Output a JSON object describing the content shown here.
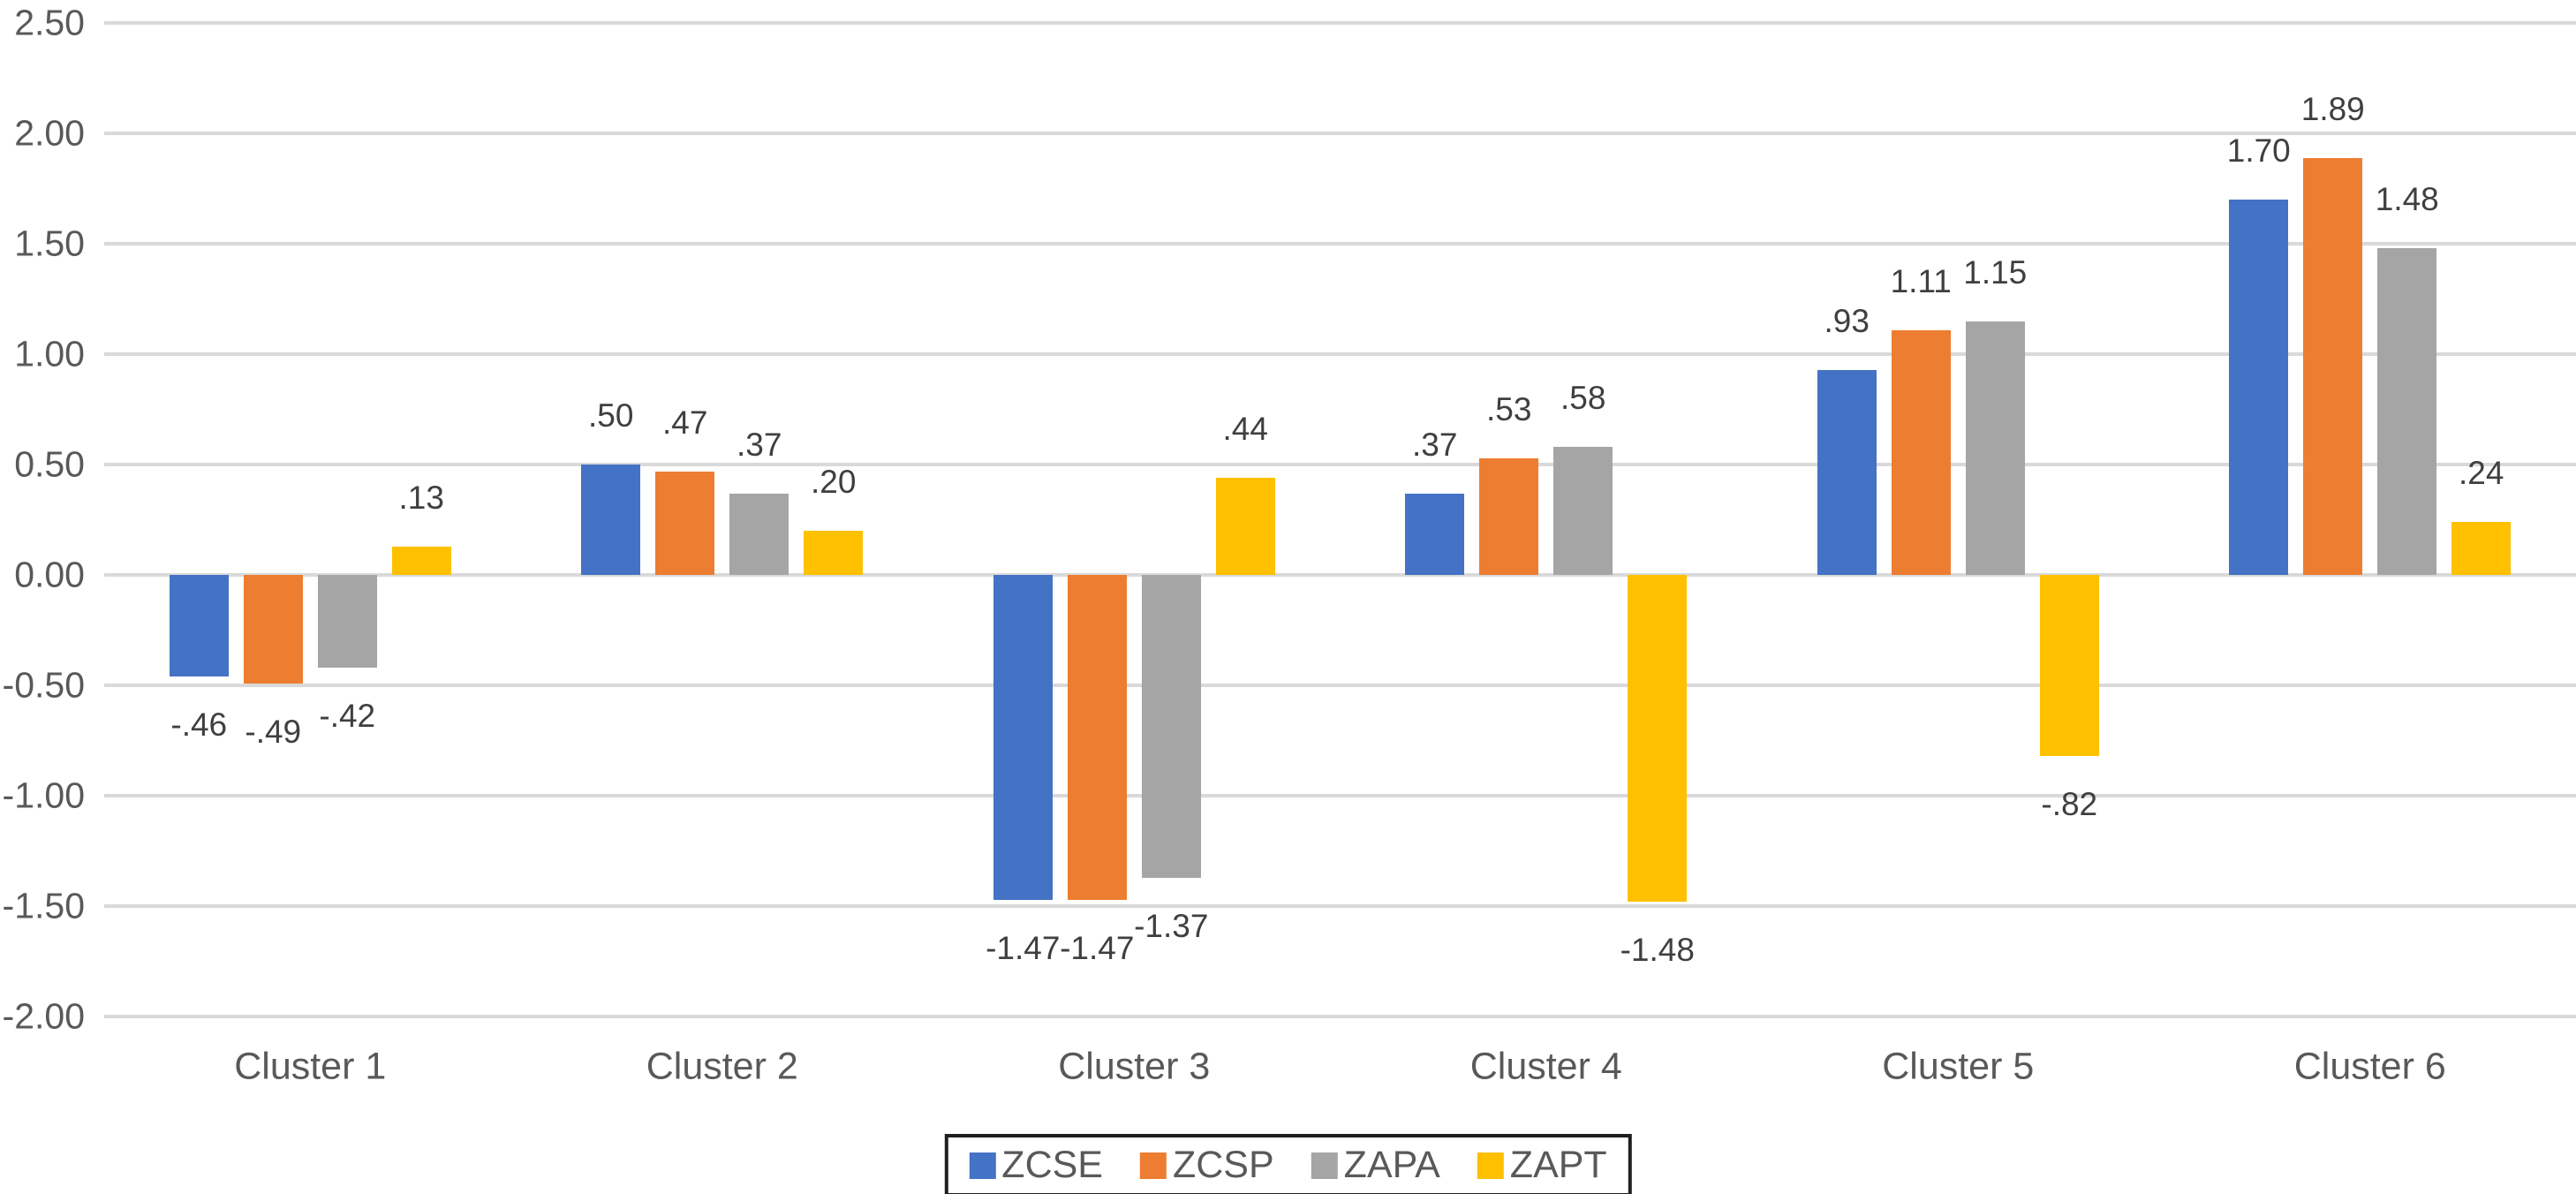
{
  "chart_data": {
    "type": "bar",
    "title": "",
    "categories": [
      "Cluster 1",
      "Cluster 2",
      "Cluster 3",
      "Cluster 4",
      "Cluster 5",
      "Cluster 6"
    ],
    "series": [
      {
        "name": "ZCSE",
        "color": "#4472C4",
        "values": [
          -0.46,
          0.5,
          -1.47,
          0.37,
          0.93,
          1.7
        ],
        "labels": [
          "-.46",
          ".50",
          "-1.47",
          ".37",
          ".93",
          "1.70"
        ]
      },
      {
        "name": "ZCSP",
        "color": "#ED7D31",
        "values": [
          -0.49,
          0.47,
          -1.47,
          0.53,
          1.11,
          1.89
        ],
        "labels": [
          "-.49",
          ".47",
          "-1.47",
          ".53",
          "1.11",
          "1.89"
        ]
      },
      {
        "name": "ZAPA",
        "color": "#A5A5A5",
        "values": [
          -0.42,
          0.37,
          -1.37,
          0.58,
          1.15,
          1.48
        ],
        "labels": [
          "-.42",
          ".37",
          "-1.37",
          ".58",
          "1.15",
          "1.48"
        ]
      },
      {
        "name": "ZAPT",
        "color": "#FFC000",
        "values": [
          0.13,
          0.2,
          0.44,
          -1.48,
          -0.82,
          0.24
        ],
        "labels": [
          ".13",
          ".20",
          ".44",
          "-1.48",
          "-.82",
          ".24"
        ]
      }
    ],
    "y_axis": {
      "min": -2.0,
      "max": 2.5,
      "step": 0.5,
      "tick_labels": [
        "2.50",
        "2.00",
        "1.50",
        "1.00",
        "0.50",
        "0.00",
        "-0.50",
        "-1.00",
        "-1.50",
        "-2.00"
      ]
    },
    "grid": true,
    "gridline_color": "#D9D9D9",
    "data_label_color": "#3F3F3F",
    "axis_label_color": "#595959",
    "legend": {
      "position": "bottom",
      "border_color": "#1F1F1F",
      "entries": [
        "ZCSE",
        "ZCSP",
        "ZAPA",
        "ZAPT"
      ]
    }
  }
}
